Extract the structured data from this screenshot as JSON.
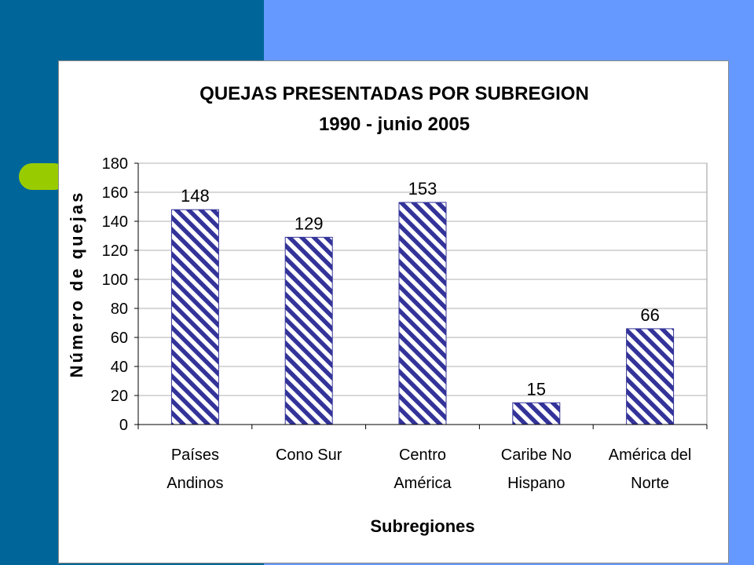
{
  "slide": {
    "colors": {
      "dark_band": "#006699",
      "light_band": "#6699ff",
      "bullet": "#99cc00"
    }
  },
  "chart_data": {
    "type": "bar",
    "title": "QUEJAS PRESENTADAS  POR SUBREGION",
    "subtitle": "1990 - junio 2005",
    "xlabel": "Subregiones",
    "ylabel": "Número de quejas",
    "categories": [
      [
        "Países",
        "Andinos"
      ],
      [
        "Cono Sur"
      ],
      [
        "Centro",
        "América"
      ],
      [
        "Caribe No",
        "Hispano"
      ],
      [
        "América del",
        "Norte"
      ]
    ],
    "values": [
      148,
      129,
      153,
      15,
      66
    ],
    "ylim": [
      0,
      180
    ],
    "yticks": [
      "0",
      "20",
      "40",
      "60",
      "80",
      "100",
      "120",
      "140",
      "160",
      "180"
    ],
    "grid": true,
    "bar_pattern": "diagonal-stripes",
    "bar_color": "#333399",
    "legend": "none"
  }
}
